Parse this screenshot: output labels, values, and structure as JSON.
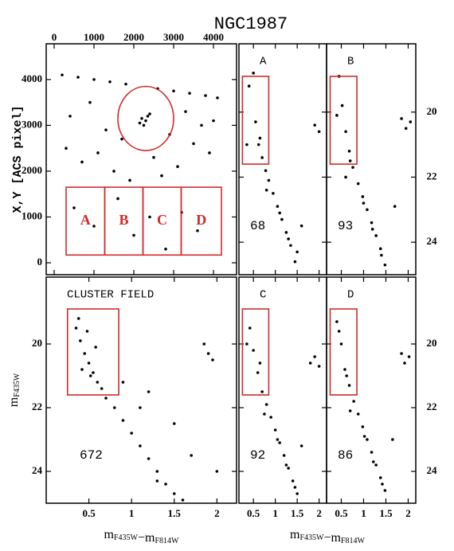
{
  "title": "NGC1987",
  "chart_data": [
    {
      "type": "map",
      "xlim": [
        -200,
        4580
      ],
      "ylim": [
        -260,
        4780
      ],
      "xticks": [
        0,
        1000,
        2000,
        3000,
        4000
      ],
      "yticks": [
        0,
        1000,
        2000,
        3000,
        4000
      ],
      "xtick_labels": "top",
      "ytick_labels": "left",
      "y_label": "X,Y [ACS pixel]",
      "circle": {
        "center": [
          2300,
          3150
        ],
        "radius": 700
      },
      "regions": [
        {
          "label": "A",
          "x": [
            300,
            1270
          ],
          "y": [
            170,
            1650
          ]
        },
        {
          "label": "B",
          "x": [
            1270,
            2230
          ],
          "y": [
            170,
            1650
          ]
        },
        {
          "label": "C",
          "x": [
            2230,
            3190
          ],
          "y": [
            170,
            1650
          ]
        },
        {
          "label": "D",
          "x": [
            3190,
            4200
          ],
          "y": [
            170,
            1650
          ]
        }
      ],
      "x": [
        200,
        600,
        1000,
        1400,
        1800,
        2600,
        3000,
        3400,
        3800,
        4100,
        400,
        900,
        1300,
        1700,
        2900,
        3300,
        3700,
        4000,
        300,
        700,
        1100,
        1500,
        1900,
        2500,
        2700,
        3100,
        3500,
        3900,
        500,
        1000,
        1600,
        2000,
        2400,
        2800,
        3200,
        3600,
        2200,
        2300,
        2400,
        2150,
        2350,
        2250
      ],
      "y": [
        4100,
        4050,
        4000,
        3950,
        3900,
        3800,
        3750,
        3700,
        3650,
        3600,
        3200,
        3500,
        2900,
        2700,
        2800,
        3300,
        3000,
        3100,
        2500,
        2200,
        2400,
        2000,
        1800,
        2300,
        1900,
        2100,
        2600,
        2400,
        1200,
        800,
        1400,
        600,
        1000,
        300,
        1100,
        700,
        3150,
        3100,
        3250,
        3050,
        3200,
        3000
      ]
    },
    {
      "type": "scatter",
      "label": "A",
      "count": 68,
      "xlim": [
        0.17,
        2.17
      ],
      "ylim": [
        25,
        17.9
      ],
      "xticks": [
        0.5,
        1,
        1.5,
        2
      ],
      "yticks": [
        20,
        22,
        24
      ],
      "xtick_labels": "none",
      "ytick_labels": "none",
      "box": {
        "x": [
          0.25,
          0.85
        ],
        "y": [
          18.9,
          21.6
        ]
      },
      "x": [
        0.4,
        0.55,
        0.62,
        0.7,
        0.78,
        0.85,
        0.95,
        1.05,
        1.15,
        1.25,
        1.35,
        1.45,
        0.5,
        0.65,
        1.9,
        2.0,
        0.35,
        0.8,
        1.1,
        1.3,
        1.5,
        1.6
      ],
      "y": [
        19.2,
        20.3,
        21.0,
        21.4,
        21.8,
        22.1,
        22.5,
        22.9,
        23.3,
        23.7,
        24.1,
        24.6,
        18.8,
        20.8,
        20.4,
        20.6,
        21.0,
        22.4,
        23.1,
        23.9,
        24.3,
        23.5
      ]
    },
    {
      "type": "scatter",
      "label": "B",
      "count": 93,
      "xlim": [
        0.17,
        2.17
      ],
      "ylim": [
        25,
        17.9
      ],
      "xticks": [
        0.5,
        1,
        1.5,
        2
      ],
      "yticks": [
        20,
        22,
        24
      ],
      "xtick_labels": "none",
      "ytick_labels": "right",
      "box": {
        "x": [
          0.25,
          0.85
        ],
        "y": [
          18.9,
          21.6
        ]
      },
      "x": [
        0.45,
        0.52,
        0.6,
        0.68,
        0.76,
        0.88,
        0.98,
        1.08,
        1.18,
        1.28,
        1.38,
        1.48,
        0.4,
        0.7,
        1.85,
        1.95,
        2.05,
        0.6,
        1.0,
        1.2,
        1.4,
        1.7
      ],
      "y": [
        18.9,
        19.8,
        20.6,
        21.2,
        21.7,
        22.2,
        22.6,
        23.0,
        23.4,
        23.8,
        24.2,
        24.7,
        20.1,
        21.5,
        20.2,
        20.5,
        20.3,
        22.0,
        22.8,
        23.6,
        24.4,
        22.9
      ]
    },
    {
      "type": "scatter",
      "label": "CLUSTER FIELD",
      "count": 672,
      "xlim": [
        0,
        2.23
      ],
      "ylim": [
        25,
        17.9
      ],
      "xticks": [
        0.5,
        1,
        1.5,
        2
      ],
      "yticks": [
        20,
        22,
        24
      ],
      "xtick_labels": "bottom",
      "ytick_labels": "left",
      "y_label": {
        "text": "m",
        "sub": "F435W"
      },
      "x_label": [
        {
          "text": "m",
          "sub": "F435W"
        },
        {
          "text": "−m",
          "sub": "F814W"
        }
      ],
      "box": {
        "x": [
          0.25,
          0.85
        ],
        "y": [
          18.9,
          21.6
        ]
      },
      "x": [
        0.35,
        0.4,
        0.45,
        0.5,
        0.55,
        0.6,
        0.65,
        0.7,
        0.8,
        0.9,
        1.0,
        1.1,
        1.2,
        1.3,
        1.4,
        1.5,
        1.6,
        0.38,
        0.48,
        0.58,
        0.42,
        0.52,
        1.85,
        1.9,
        1.95,
        1.2,
        1.5,
        1.7,
        2.0,
        0.9,
        1.1,
        1.3
      ],
      "y": [
        19.5,
        19.9,
        20.3,
        20.6,
        20.9,
        21.2,
        21.4,
        21.7,
        22.0,
        22.4,
        22.8,
        23.2,
        23.6,
        24.0,
        24.4,
        24.7,
        24.9,
        19.2,
        19.6,
        20.1,
        20.8,
        21.0,
        20.0,
        20.3,
        20.5,
        21.5,
        22.5,
        23.5,
        24.0,
        21.2,
        22.0,
        24.3
      ]
    },
    {
      "type": "scatter",
      "label": "C",
      "count": 92,
      "xlim": [
        0.17,
        2.17
      ],
      "ylim": [
        25,
        17.9
      ],
      "xticks": [
        0.5,
        1,
        1.5,
        2
      ],
      "yticks": [
        20,
        22,
        24
      ],
      "xtick_labels": "bottom",
      "ytick_labels": "none",
      "box": {
        "x": [
          0.25,
          0.85
        ],
        "y": [
          18.9,
          21.6
        ]
      },
      "x": [
        0.42,
        0.5,
        0.6,
        0.7,
        0.8,
        0.9,
        1.0,
        1.1,
        1.2,
        1.3,
        1.4,
        1.5,
        0.35,
        0.65,
        1.8,
        1.9,
        2.0,
        0.75,
        1.05,
        1.25,
        1.45,
        1.6
      ],
      "y": [
        19.5,
        20.2,
        20.9,
        21.5,
        21.9,
        22.3,
        22.7,
        23.1,
        23.5,
        23.9,
        24.3,
        24.7,
        20.0,
        20.6,
        20.6,
        20.4,
        20.7,
        22.2,
        23.0,
        23.8,
        24.5,
        23.2
      ]
    },
    {
      "type": "scatter",
      "label": "D",
      "count": 86,
      "xlim": [
        0.17,
        2.17
      ],
      "ylim": [
        25,
        17.9
      ],
      "xticks": [
        0.5,
        1,
        1.5,
        2
      ],
      "yticks": [
        20,
        22,
        24
      ],
      "xtick_labels": "bottom",
      "ytick_labels": "right",
      "x_label": [
        {
          "text": "m",
          "sub": "F435W"
        },
        {
          "text": "−m",
          "sub": "F814W"
        }
      ],
      "box": {
        "x": [
          0.25,
          0.85
        ],
        "y": [
          18.9,
          21.6
        ]
      },
      "x": [
        0.4,
        0.5,
        0.58,
        0.68,
        0.78,
        0.88,
        0.98,
        1.08,
        1.18,
        1.28,
        1.38,
        1.48,
        0.45,
        0.62,
        1.85,
        1.92,
        2.02,
        0.7,
        1.02,
        1.22,
        1.42,
        1.65
      ],
      "y": [
        19.3,
        20.0,
        20.8,
        21.3,
        21.8,
        22.2,
        22.6,
        23.0,
        23.4,
        23.8,
        24.2,
        24.6,
        19.6,
        21.0,
        20.3,
        20.6,
        20.4,
        22.1,
        22.9,
        23.7,
        24.4,
        23.0
      ]
    }
  ]
}
